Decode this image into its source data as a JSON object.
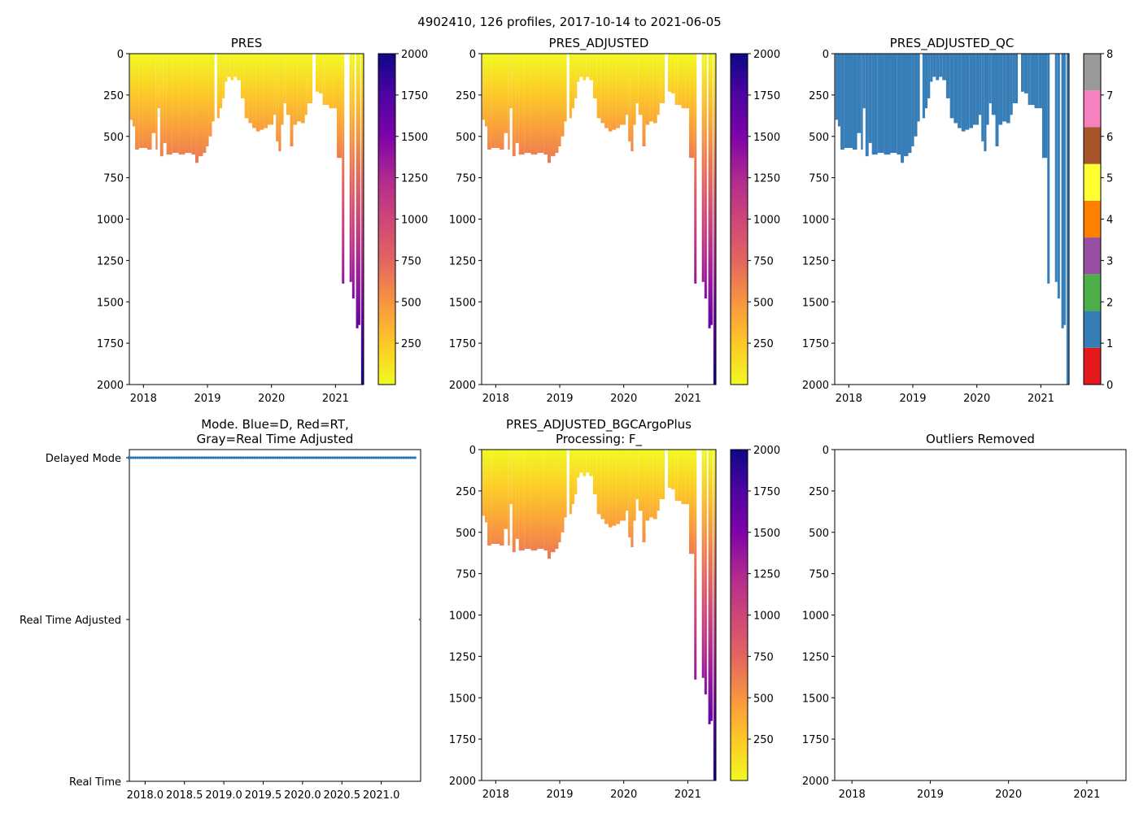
{
  "chart_data": [
    {
      "id": "pres",
      "type": "heatmap",
      "title": "PRES",
      "xlabel": "",
      "ylabel": "",
      "xticks": [
        "2018",
        "2019",
        "2020",
        "2021"
      ],
      "yticks": [
        "0",
        "250",
        "500",
        "750",
        "1000",
        "1250",
        "1500",
        "1750",
        "2000"
      ],
      "ylim": [
        2000,
        0
      ],
      "colorbar": {
        "type": "continuous",
        "colormap": "plasma_r",
        "ticks": [
          "250",
          "500",
          "750",
          "1000",
          "1250",
          "1500",
          "1750",
          "2000"
        ],
        "range": [
          0,
          2000
        ]
      }
    },
    {
      "id": "pres_adjusted",
      "type": "heatmap",
      "title": "PRES_ADJUSTED",
      "xticks": [
        "2018",
        "2019",
        "2020",
        "2021"
      ],
      "yticks": [
        "0",
        "250",
        "500",
        "750",
        "1000",
        "1250",
        "1500",
        "1750",
        "2000"
      ],
      "ylim": [
        2000,
        0
      ],
      "colorbar": {
        "type": "continuous",
        "colormap": "plasma_r",
        "ticks": [
          "250",
          "500",
          "750",
          "1000",
          "1250",
          "1500",
          "1750",
          "2000"
        ],
        "range": [
          0,
          2000
        ]
      }
    },
    {
      "id": "pres_adjusted_qc",
      "type": "heatmap",
      "title": "PRES_ADJUSTED_QC",
      "xticks": [
        "2018",
        "2019",
        "2020",
        "2021"
      ],
      "yticks": [
        "0",
        "250",
        "500",
        "750",
        "1000",
        "1250",
        "1500",
        "1750",
        "2000"
      ],
      "ylim": [
        2000,
        0
      ],
      "fill_color": "#377eb8",
      "colorbar": {
        "type": "discrete",
        "ticks": [
          "0",
          "1",
          "2",
          "3",
          "4",
          "5",
          "6",
          "7",
          "8"
        ],
        "colors": [
          "#e41a1c",
          "#377eb8",
          "#4daf4a",
          "#984ea3",
          "#ff7f00",
          "#ffff33",
          "#a65628",
          "#f781bf",
          "#999999"
        ]
      }
    },
    {
      "id": "mode",
      "type": "scatter",
      "title_lines": [
        "Mode. Blue=D, Red=RT,",
        "Gray=Real Time Adjusted"
      ],
      "xticks": [
        "2018.0",
        "2018.5",
        "2019.0",
        "2019.5",
        "2020.0",
        "2020.5",
        "2021.0"
      ],
      "yticks": [
        "Delayed Mode",
        "Real Time Adjusted",
        "Real Time"
      ],
      "xlim": [
        2017.8,
        2021.5
      ],
      "series": [
        {
          "name": "Delayed Mode",
          "color": "#1f77b4",
          "x_range": [
            2017.79,
            2021.43
          ],
          "count": 126
        }
      ]
    },
    {
      "id": "bgc",
      "type": "heatmap",
      "title_lines": [
        "PRES_ADJUSTED_BGCArgoPlus",
        "Processing: F_"
      ],
      "xticks": [
        "2018",
        "2019",
        "2020",
        "2021"
      ],
      "yticks": [
        "0",
        "250",
        "500",
        "750",
        "1000",
        "1250",
        "1500",
        "1750",
        "2000"
      ],
      "ylim": [
        2000,
        0
      ],
      "colorbar": {
        "type": "continuous",
        "colormap": "plasma_r",
        "ticks": [
          "250",
          "500",
          "750",
          "1000",
          "1250",
          "1500",
          "1750",
          "2000"
        ],
        "range": [
          0,
          2000
        ]
      }
    },
    {
      "id": "outliers",
      "type": "scatter",
      "title": "Outliers Removed",
      "xticks": [
        "2018",
        "2019",
        "2020",
        "2021"
      ],
      "yticks": [
        "0",
        "250",
        "500",
        "750",
        "1000",
        "1250",
        "1500",
        "1750",
        "2000"
      ],
      "ylim": [
        2000,
        0
      ],
      "series": []
    }
  ],
  "suptitle": "4902410, 126 profiles, 2017-10-14 to 2021-06-05",
  "profile_max_depths": [
    {
      "year": 2017.79,
      "depth": 400
    },
    {
      "year": 2017.83,
      "depth": 440
    },
    {
      "year": 2017.87,
      "depth": 580
    },
    {
      "year": 2017.93,
      "depth": 570
    },
    {
      "year": 2017.99,
      "depth": 570
    },
    {
      "year": 2018.06,
      "depth": 580
    },
    {
      "year": 2018.13,
      "depth": 480
    },
    {
      "year": 2018.19,
      "depth": 580
    },
    {
      "year": 2018.22,
      "depth": 330
    },
    {
      "year": 2018.26,
      "depth": 620
    },
    {
      "year": 2018.31,
      "depth": 540
    },
    {
      "year": 2018.36,
      "depth": 610
    },
    {
      "year": 2018.45,
      "depth": 600
    },
    {
      "year": 2018.55,
      "depth": 610
    },
    {
      "year": 2018.65,
      "depth": 600
    },
    {
      "year": 2018.75,
      "depth": 610
    },
    {
      "year": 2018.81,
      "depth": 660
    },
    {
      "year": 2018.86,
      "depth": 620
    },
    {
      "year": 2018.93,
      "depth": 600
    },
    {
      "year": 2018.98,
      "depth": 560
    },
    {
      "year": 2019.02,
      "depth": 500
    },
    {
      "year": 2019.07,
      "depth": 410
    },
    {
      "year": 2019.11,
      "depth": 0
    },
    {
      "year": 2019.15,
      "depth": 390
    },
    {
      "year": 2019.19,
      "depth": 330
    },
    {
      "year": 2019.23,
      "depth": 270
    },
    {
      "year": 2019.27,
      "depth": 170
    },
    {
      "year": 2019.31,
      "depth": 140
    },
    {
      "year": 2019.36,
      "depth": 160
    },
    {
      "year": 2019.41,
      "depth": 140
    },
    {
      "year": 2019.46,
      "depth": 160
    },
    {
      "year": 2019.52,
      "depth": 270
    },
    {
      "year": 2019.58,
      "depth": 390
    },
    {
      "year": 2019.64,
      "depth": 420
    },
    {
      "year": 2019.7,
      "depth": 450
    },
    {
      "year": 2019.76,
      "depth": 470
    },
    {
      "year": 2019.82,
      "depth": 460
    },
    {
      "year": 2019.88,
      "depth": 450
    },
    {
      "year": 2019.94,
      "depth": 430
    },
    {
      "year": 2019.99,
      "depth": 430
    },
    {
      "year": 2020.03,
      "depth": 370
    },
    {
      "year": 2020.07,
      "depth": 530
    },
    {
      "year": 2020.11,
      "depth": 590
    },
    {
      "year": 2020.15,
      "depth": 430
    },
    {
      "year": 2020.19,
      "depth": 300
    },
    {
      "year": 2020.23,
      "depth": 370
    },
    {
      "year": 2020.29,
      "depth": 560
    },
    {
      "year": 2020.34,
      "depth": 430
    },
    {
      "year": 2020.4,
      "depth": 410
    },
    {
      "year": 2020.46,
      "depth": 420
    },
    {
      "year": 2020.52,
      "depth": 370
    },
    {
      "year": 2020.56,
      "depth": 300
    },
    {
      "year": 2020.6,
      "depth": 300
    },
    {
      "year": 2020.64,
      "depth": 0
    },
    {
      "year": 2020.69,
      "depth": 230
    },
    {
      "year": 2020.74,
      "depth": 240
    },
    {
      "year": 2020.8,
      "depth": 310
    },
    {
      "year": 2020.84,
      "depth": 310
    },
    {
      "year": 2020.9,
      "depth": 330
    },
    {
      "year": 2020.96,
      "depth": 330
    },
    {
      "year": 2021.02,
      "depth": 630
    },
    {
      "year": 2021.1,
      "depth": 1390
    },
    {
      "year": 2021.22,
      "depth": 1380
    },
    {
      "year": 2021.26,
      "depth": 1480
    },
    {
      "year": 2021.32,
      "depth": 1660
    },
    {
      "year": 2021.35,
      "depth": 1640
    },
    {
      "year": 2021.4,
      "depth": 2000
    }
  ]
}
